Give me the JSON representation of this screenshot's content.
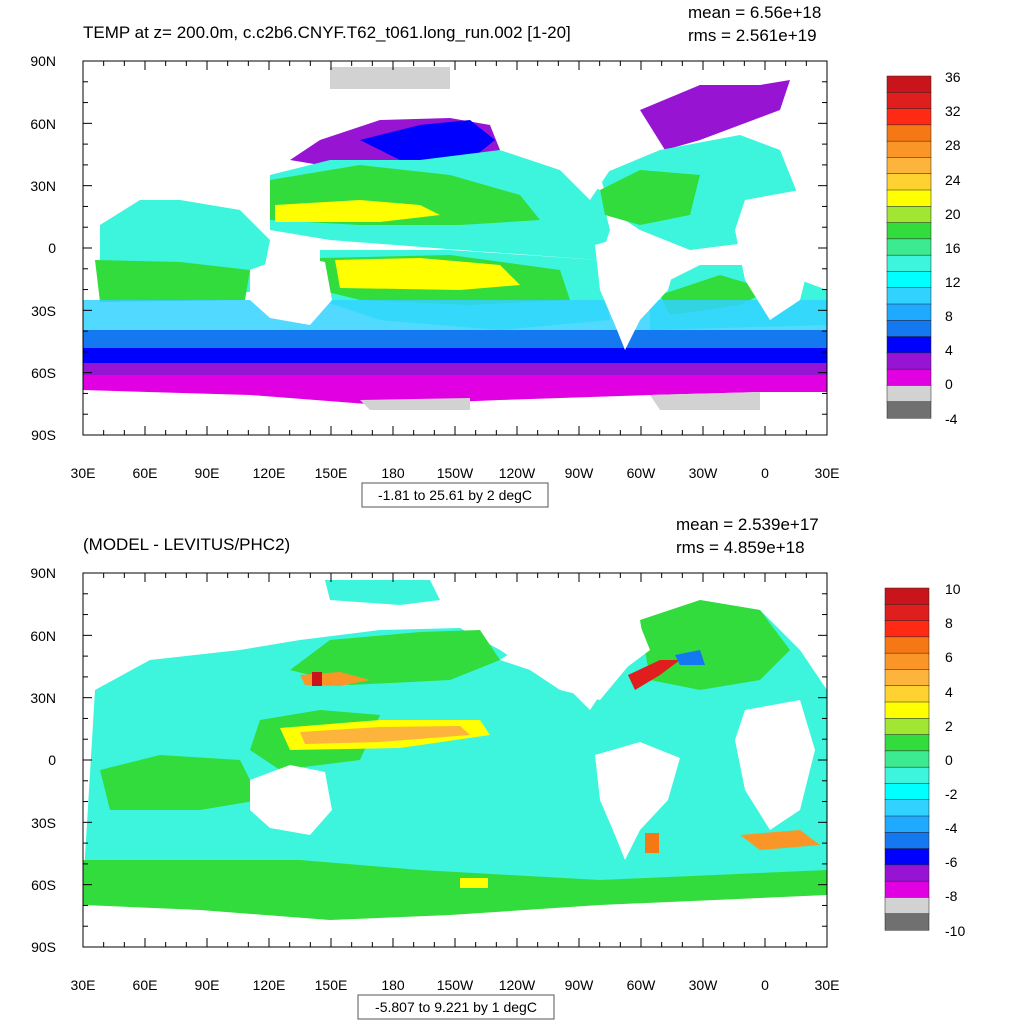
{
  "panels": [
    {
      "id": "top",
      "title": "TEMP at z= 200.0m, c.c2b6.CNYF.T62_t061.long_run.002 [1-20]",
      "stats": {
        "mean": "mean = 6.56e+18",
        "rms": "rms = 2.561e+19"
      },
      "range_note": "-1.81 to 25.61 by 2 degC",
      "colorbar": {
        "labels": [
          "36",
          "32",
          "28",
          "24",
          "20",
          "16",
          "12",
          "8",
          "4",
          "0",
          "-4"
        ],
        "colors": [
          "#c8141a",
          "#e01e1e",
          "#ff2a14",
          "#f57814",
          "#fa9628",
          "#fcb43c",
          "#ffd232",
          "#ffff00",
          "#a0e632",
          "#32dc3c",
          "#3ceb91",
          "#3cf5dc",
          "#00ffff",
          "#32d2ff",
          "#1eaaff",
          "#1478f0",
          "#0000ff",
          "#9614d2",
          "#e100e1",
          "#d2d2d2",
          "#707070"
        ]
      }
    },
    {
      "id": "bottom",
      "title": "(MODEL - LEVITUS/PHC2)",
      "stats": {
        "mean": "mean = 2.539e+17",
        "rms": "rms = 4.859e+18"
      },
      "range_note": "-5.807 to 9.221 by 1 degC",
      "colorbar": {
        "labels": [
          "10",
          "8",
          "6",
          "4",
          "2",
          "0",
          "-2",
          "-4",
          "-6",
          "-8",
          "-10"
        ],
        "colors": [
          "#c8141a",
          "#e01e1e",
          "#ff2a14",
          "#f57814",
          "#fa9628",
          "#fcb43c",
          "#ffd232",
          "#ffff00",
          "#a0e632",
          "#32dc3c",
          "#3ceb91",
          "#3cf5dc",
          "#00ffff",
          "#32d2ff",
          "#1eaaff",
          "#1478f0",
          "#0000ff",
          "#9614d2",
          "#e100e1",
          "#d2d2d2",
          "#707070"
        ]
      }
    }
  ],
  "axes": {
    "lon_labels": [
      "30E",
      "60E",
      "90E",
      "120E",
      "150E",
      "180",
      "150W",
      "120W",
      "90W",
      "60W",
      "30W",
      "0",
      "30E"
    ],
    "lat_labels": [
      "90N",
      "60N",
      "30N",
      "0",
      "30S",
      "60S",
      "90S"
    ]
  }
}
